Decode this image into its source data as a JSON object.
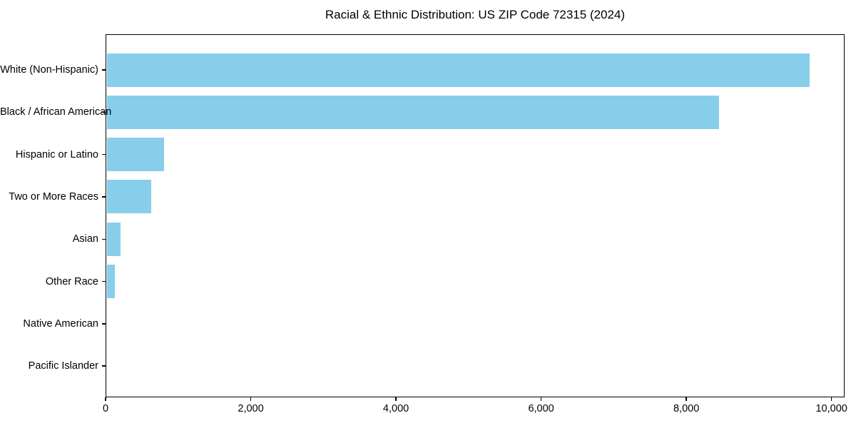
{
  "title": "Racial & Ethnic Distribution: US ZIP Code 72315 (2024)",
  "chart_data": {
    "type": "bar",
    "orientation": "horizontal",
    "title": "Racial & Ethnic Distribution: US ZIP Code 72315 (2024)",
    "categories": [
      "White (Non-Hispanic)",
      "Black / African American",
      "Hispanic or Latino",
      "Two or More Races",
      "Asian",
      "Other Race",
      "Native American",
      "Pacific Islander"
    ],
    "values": [
      9700,
      8450,
      810,
      630,
      210,
      125,
      15,
      5
    ],
    "xlabel": "",
    "ylabel": "",
    "xlim": [
      0,
      10180
    ],
    "xticks": [
      0,
      2000,
      4000,
      6000,
      8000,
      10000
    ],
    "xtick_labels": [
      "0",
      "2,000",
      "4,000",
      "6,000",
      "8,000",
      "10,000"
    ],
    "bar_color": "#87CEEB",
    "axis_color": "#000000",
    "grid": false,
    "legend": null
  }
}
